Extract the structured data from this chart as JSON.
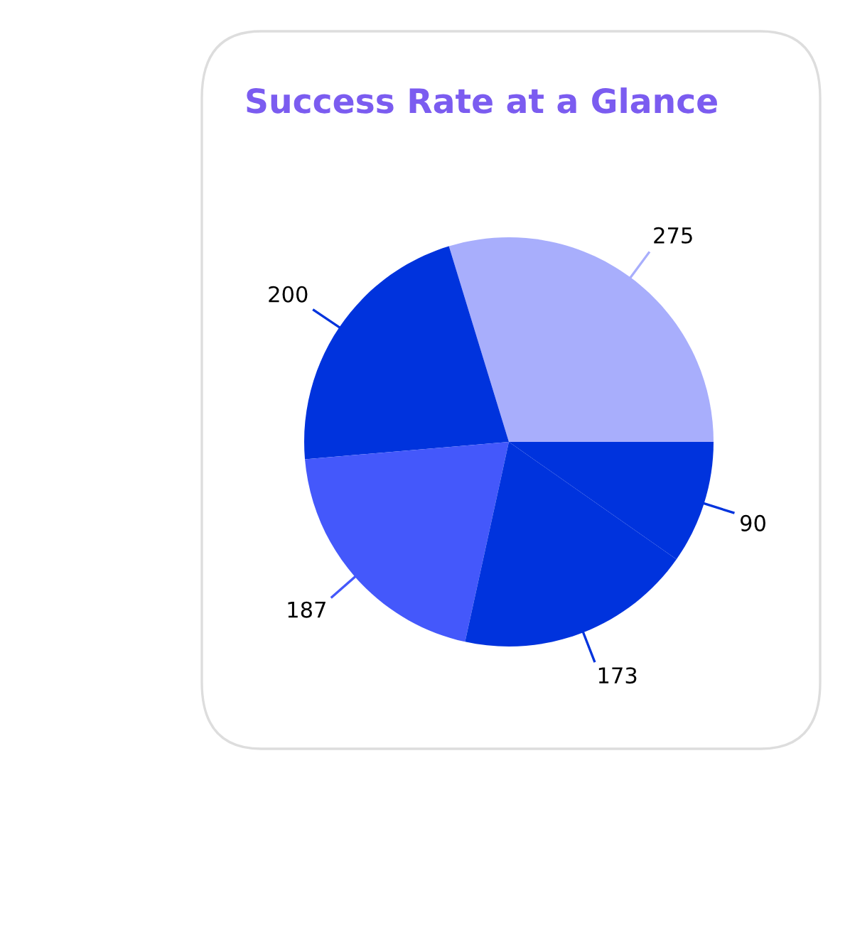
{
  "chart_data": {
    "type": "pie",
    "title": "Success Rate at a Glance",
    "categories": [
      null,
      null,
      null,
      null,
      null
    ],
    "values": [
      275,
      200,
      187,
      173,
      90
    ],
    "colors": [
      "#a8aefc",
      "#0033dd",
      "#4458fb",
      "#0033dd",
      "#0033dd"
    ],
    "data_labels": true,
    "legend": false
  }
}
